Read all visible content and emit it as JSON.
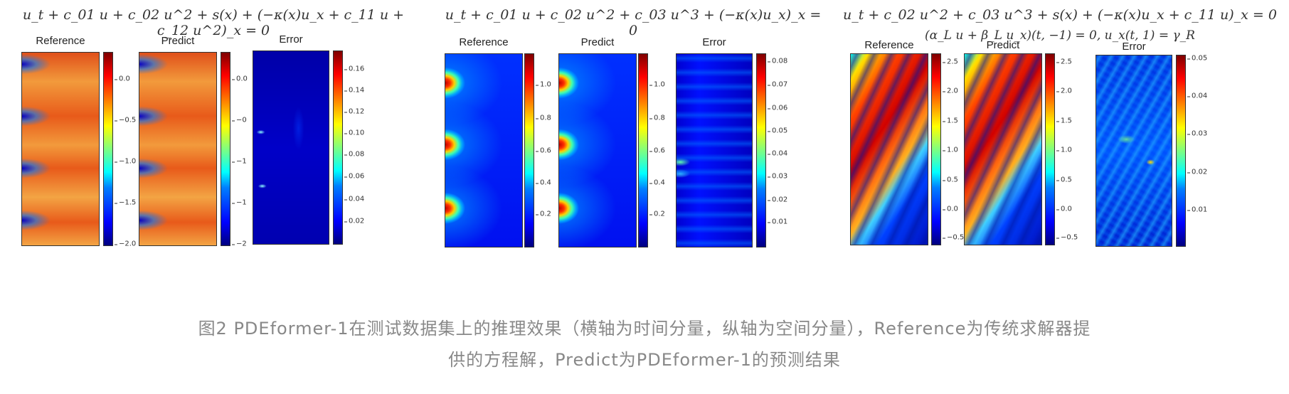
{
  "groups": [
    {
      "equation": "u_t + c_01 u + c_02 u^2 + s(x) + (−κ(x)u_x + c_11 u + c_12 u^2)_x = 0",
      "equation2": "",
      "plots": [
        {
          "title": "Reference",
          "ticks": [
            "0.0",
            "−0.5",
            "−1.0",
            "−1.5",
            "−2.0"
          ]
        },
        {
          "title": "Predict",
          "ticks": [
            "0.0",
            "−0",
            "−1",
            "−1",
            "−2"
          ]
        },
        {
          "title": "Error",
          "ticks": [
            "0.16",
            "0.14",
            "0.12",
            "0.10",
            "0.08",
            "0.06",
            "0.04",
            "0.02"
          ]
        }
      ]
    },
    {
      "equation": "u_t + c_01 u + c_02 u^2 + c_03 u^3 + (−κ(x)u_x)_x = 0",
      "equation2": "",
      "plots": [
        {
          "title": "Reference",
          "ticks": [
            "1.0",
            "0.8",
            "0.6",
            "0.4",
            "0.2"
          ]
        },
        {
          "title": "Predict",
          "ticks": [
            "1.0",
            "0.8",
            "0.6",
            "0.4",
            "0.2"
          ]
        },
        {
          "title": "Error",
          "ticks": [
            "0.08",
            "0.07",
            "0.06",
            "0.05",
            "0.04",
            "0.03",
            "0.02",
            "0.01"
          ]
        }
      ]
    },
    {
      "equation": "u_t + c_02 u^2 + c_03 u^3 + s(x) + (−κ(x)u_x + c_11 u)_x = 0",
      "equation2": "(α_L u + β_L u_x)(t, −1) = 0,  u_x(t, 1) = γ_R",
      "plots": [
        {
          "title": "Reference",
          "ticks": [
            "2.5",
            "2.0",
            "1.5",
            "1.0",
            "0.5",
            "0.0",
            "−0.5"
          ]
        },
        {
          "title": "Predict",
          "ticks": [
            "2.5",
            "2.0",
            "1.5",
            "1.0",
            "0.5",
            "0.0",
            "−0.5"
          ]
        },
        {
          "title": "Error",
          "ticks": [
            "0.05",
            "0.04",
            "0.03",
            "0.02",
            "0.01"
          ]
        }
      ]
    }
  ],
  "caption": {
    "line1": "图2 PDEformer-1在测试数据集上的推理效果（横轴为时间分量，纵轴为空间分量），Reference为传统求解器提",
    "line2": "供的方程解，Predict为PDEformer-1的预测结果"
  }
}
